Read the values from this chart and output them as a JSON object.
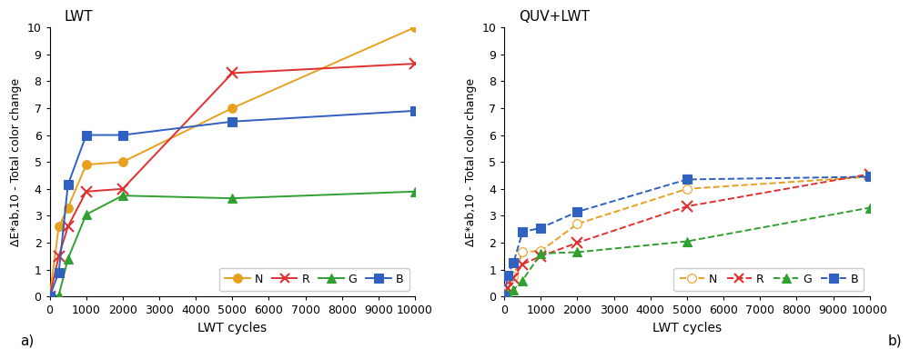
{
  "panel_a": {
    "title": "LWT",
    "xlabel": "LWT cycles",
    "ylabel": "ΔE*ab,10 - Total color change",
    "ylim": [
      0,
      10
    ],
    "xlim": [
      0,
      10000
    ],
    "xticks": [
      0,
      1000,
      2000,
      3000,
      4000,
      5000,
      6000,
      7000,
      8000,
      9000,
      10000
    ],
    "yticks": [
      0,
      1,
      2,
      3,
      4,
      5,
      6,
      7,
      8,
      9,
      10
    ],
    "series": {
      "N": {
        "x": [
          0,
          250,
          500,
          1000,
          2000,
          5000,
          10000
        ],
        "y": [
          0.0,
          2.6,
          3.3,
          4.9,
          5.0,
          7.0,
          10.0
        ],
        "color": "#E8A020",
        "marker": "o",
        "markerface": "#E8A020",
        "linestyle": "-"
      },
      "R": {
        "x": [
          0,
          250,
          500,
          1000,
          2000,
          5000,
          10000
        ],
        "y": [
          0.0,
          1.5,
          2.6,
          3.9,
          4.0,
          8.3,
          8.65
        ],
        "color": "#E03030",
        "marker": "x",
        "markerface": "#E03030",
        "linestyle": "-"
      },
      "G": {
        "x": [
          0,
          250,
          500,
          1000,
          2000,
          5000,
          10000
        ],
        "y": [
          0.0,
          0.05,
          1.4,
          3.05,
          3.75,
          3.65,
          3.9
        ],
        "color": "#30A030",
        "marker": "^",
        "markerface": "#30A030",
        "linestyle": "-"
      },
      "B": {
        "x": [
          0,
          250,
          500,
          1000,
          2000,
          5000,
          10000
        ],
        "y": [
          0.0,
          0.9,
          4.15,
          6.0,
          6.0,
          6.5,
          6.9
        ],
        "color": "#3060C0",
        "marker": "s",
        "markerface": "#3060C0",
        "linestyle": "-"
      }
    },
    "label": "a)"
  },
  "panel_b": {
    "title": "QUV+LWT",
    "xlabel": "LWT cycles",
    "ylabel": "ΔE*ab,10 - Total color change",
    "ylim": [
      0,
      10
    ],
    "xlim": [
      0,
      10000
    ],
    "xticks": [
      0,
      1000,
      2000,
      3000,
      4000,
      5000,
      6000,
      7000,
      8000,
      9000,
      10000
    ],
    "yticks": [
      0,
      1,
      2,
      3,
      4,
      5,
      6,
      7,
      8,
      9,
      10
    ],
    "series": {
      "N": {
        "x": [
          0,
          100,
          250,
          500,
          1000,
          2000,
          5000,
          10000
        ],
        "y": [
          0.0,
          0.35,
          0.75,
          1.65,
          1.7,
          2.7,
          4.0,
          4.45
        ],
        "color": "#E8A020",
        "marker": "o",
        "markerface": "white",
        "linestyle": "--"
      },
      "R": {
        "x": [
          0,
          100,
          250,
          500,
          1000,
          2000,
          5000,
          10000
        ],
        "y": [
          0.0,
          0.3,
          0.7,
          1.2,
          1.5,
          2.0,
          3.35,
          4.55
        ],
        "color": "#E03030",
        "marker": "x",
        "markerface": "#E03030",
        "linestyle": "--"
      },
      "G": {
        "x": [
          0,
          100,
          250,
          500,
          1000,
          2000,
          5000,
          10000
        ],
        "y": [
          0.0,
          0.1,
          0.25,
          0.6,
          1.6,
          1.65,
          2.05,
          3.3
        ],
        "color": "#30A030",
        "marker": "^",
        "markerface": "#30A030",
        "linestyle": "--"
      },
      "B": {
        "x": [
          0,
          100,
          250,
          500,
          1000,
          2000,
          5000,
          10000
        ],
        "y": [
          0.0,
          0.8,
          1.25,
          2.4,
          2.55,
          3.15,
          4.35,
          4.45
        ],
        "color": "#3060C0",
        "marker": "s",
        "markerface": "#3060C0",
        "linestyle": "--"
      }
    },
    "label": "b)"
  }
}
